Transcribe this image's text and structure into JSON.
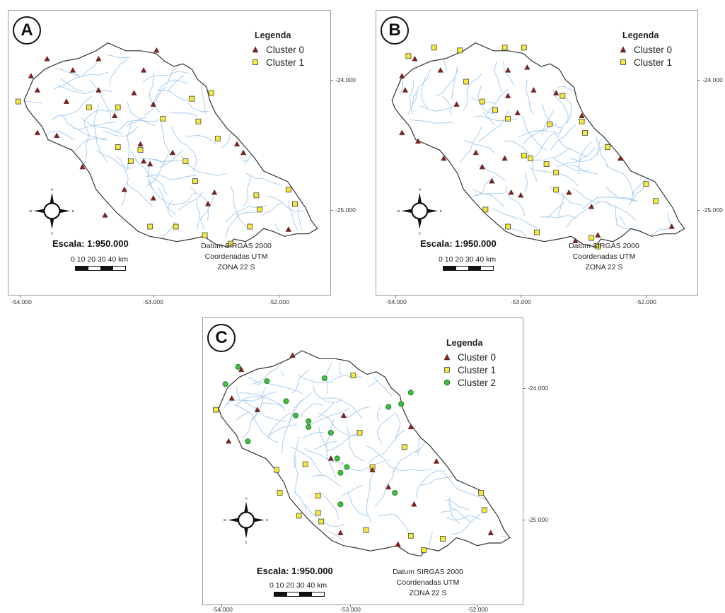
{
  "panels": [
    {
      "label": "A",
      "legend": {
        "title": "Legenda",
        "items": [
          {
            "name": "Cluster 0",
            "symbol": "triangle",
            "color": "#8b1c1c"
          },
          {
            "name": "Cluster 1",
            "symbol": "square",
            "color": "#f5e93c"
          }
        ]
      },
      "scale": {
        "title": "Escala: 1:950.000",
        "ticks": "0  10 20 30 40 km"
      },
      "datum": [
        "Datum SIRGAS 2000",
        "Coordenadas UTM",
        "ZONA 22 S"
      ],
      "lat_labels": [
        "-24.000",
        "-25.000"
      ],
      "lon_labels": [
        "-54.000",
        "-53.000",
        "-52.000"
      ],
      "points": {
        "cluster0": [
          [
            0.2,
            0.21
          ],
          [
            0.28,
            0.17
          ],
          [
            0.42,
            0.21
          ],
          [
            0.46,
            0.14
          ],
          [
            0.12,
            0.17
          ],
          [
            0.07,
            0.23
          ],
          [
            0.09,
            0.28
          ],
          [
            0.18,
            0.32
          ],
          [
            0.28,
            0.28
          ],
          [
            0.39,
            0.29
          ],
          [
            0.33,
            0.37
          ],
          [
            0.45,
            0.33
          ],
          [
            0.41,
            0.47
          ],
          [
            0.09,
            0.43
          ],
          [
            0.15,
            0.44
          ],
          [
            0.23,
            0.55
          ],
          [
            0.42,
            0.53
          ],
          [
            0.44,
            0.54
          ],
          [
            0.51,
            0.5
          ],
          [
            0.36,
            0.63
          ],
          [
            0.45,
            0.66
          ],
          [
            0.62,
            0.68
          ],
          [
            0.3,
            0.72
          ],
          [
            0.64,
            0.64
          ],
          [
            0.71,
            0.47
          ],
          [
            0.73,
            0.5
          ],
          [
            0.87,
            0.77
          ]
        ],
        "cluster1": [
          [
            0.03,
            0.32
          ],
          [
            0.25,
            0.34
          ],
          [
            0.34,
            0.34
          ],
          [
            0.48,
            0.38
          ],
          [
            0.57,
            0.31
          ],
          [
            0.63,
            0.29
          ],
          [
            0.59,
            0.39
          ],
          [
            0.65,
            0.45
          ],
          [
            0.34,
            0.48
          ],
          [
            0.41,
            0.49
          ],
          [
            0.38,
            0.53
          ],
          [
            0.55,
            0.53
          ],
          [
            0.58,
            0.6
          ],
          [
            0.77,
            0.65
          ],
          [
            0.78,
            0.7
          ],
          [
            0.87,
            0.63
          ],
          [
            0.89,
            0.68
          ],
          [
            0.44,
            0.76
          ],
          [
            0.52,
            0.76
          ],
          [
            0.61,
            0.79
          ],
          [
            0.69,
            0.82
          ],
          [
            0.75,
            0.76
          ]
        ]
      }
    },
    {
      "label": "B",
      "legend": {
        "title": "Legenda",
        "items": [
          {
            "name": "Cluster 0",
            "symbol": "triangle",
            "color": "#8b1c1c"
          },
          {
            "name": "Cluster 1",
            "symbol": "square",
            "color": "#f5e93c"
          }
        ]
      },
      "scale": {
        "title": "Escala: 1:950.000",
        "ticks": "0  10 20 30 40 km"
      },
      "datum": [
        "Datum SIRGAS 2000",
        "Coordenadas UTM",
        "ZONA 22 S"
      ],
      "lat_labels": [
        "-24.000",
        "-25.000"
      ],
      "lon_labels": [
        "-54.000",
        "-53.000",
        "-52.000"
      ],
      "points": {
        "cluster0": [
          [
            0.12,
            0.17
          ],
          [
            0.08,
            0.23
          ],
          [
            0.09,
            0.28
          ],
          [
            0.2,
            0.21
          ],
          [
            0.25,
            0.33
          ],
          [
            0.41,
            0.21
          ],
          [
            0.47,
            0.2
          ],
          [
            0.49,
            0.28
          ],
          [
            0.41,
            0.3
          ],
          [
            0.44,
            0.36
          ],
          [
            0.64,
            0.37
          ],
          [
            0.56,
            0.29
          ],
          [
            0.08,
            0.43
          ],
          [
            0.13,
            0.46
          ],
          [
            0.21,
            0.52
          ],
          [
            0.31,
            0.5
          ],
          [
            0.33,
            0.55
          ],
          [
            0.4,
            0.52
          ],
          [
            0.36,
            0.6
          ],
          [
            0.42,
            0.64
          ],
          [
            0.45,
            0.65
          ],
          [
            0.6,
            0.64
          ],
          [
            0.67,
            0.69
          ],
          [
            0.76,
            0.52
          ],
          [
            0.92,
            0.76
          ],
          [
            0.69,
            0.79
          ],
          [
            0.62,
            0.81
          ]
        ],
        "cluster1": [
          [
            0.1,
            0.16
          ],
          [
            0.18,
            0.13
          ],
          [
            0.26,
            0.14
          ],
          [
            0.4,
            0.13
          ],
          [
            0.46,
            0.13
          ],
          [
            0.28,
            0.25
          ],
          [
            0.33,
            0.32
          ],
          [
            0.37,
            0.35
          ],
          [
            0.41,
            0.38
          ],
          [
            0.58,
            0.3
          ],
          [
            0.64,
            0.39
          ],
          [
            0.54,
            0.4
          ],
          [
            0.65,
            0.43
          ],
          [
            0.72,
            0.48
          ],
          [
            0.46,
            0.51
          ],
          [
            0.48,
            0.52
          ],
          [
            0.53,
            0.54
          ],
          [
            0.56,
            0.57
          ],
          [
            0.56,
            0.63
          ],
          [
            0.84,
            0.61
          ],
          [
            0.87,
            0.67
          ],
          [
            0.34,
            0.7
          ],
          [
            0.41,
            0.76
          ],
          [
            0.5,
            0.78
          ],
          [
            0.67,
            0.8
          ],
          [
            0.69,
            0.83
          ]
        ]
      }
    },
    {
      "label": "C",
      "legend": {
        "title": "Legenda",
        "items": [
          {
            "name": "Cluster 0",
            "symbol": "triangle",
            "color": "#8b1c1c"
          },
          {
            "name": "Cluster 1",
            "symbol": "square",
            "color": "#f5e93c"
          },
          {
            "name": "Cluster 2",
            "symbol": "circle",
            "color": "#3fbf3f"
          }
        ]
      },
      "scale": {
        "title": "Escala: 1:950.000",
        "ticks": "0  10 20 30 40 km"
      },
      "datum": [
        "Datum SIRGAS 2000",
        "Coordenadas UTM",
        "ZONA 22 S"
      ],
      "lat_labels": [
        "-24.000",
        "-25.000"
      ],
      "lon_labels": [
        "-54.000",
        "-53.000",
        "-52.000"
      ],
      "points": {
        "cluster0": [
          [
            0.12,
            0.18
          ],
          [
            0.09,
            0.28
          ],
          [
            0.17,
            0.32
          ],
          [
            0.28,
            0.13
          ],
          [
            0.44,
            0.34
          ],
          [
            0.65,
            0.38
          ],
          [
            0.08,
            0.43
          ],
          [
            0.4,
            0.49
          ],
          [
            0.53,
            0.53
          ],
          [
            0.73,
            0.5
          ],
          [
            0.58,
            0.59
          ],
          [
            0.66,
            0.65
          ],
          [
            0.43,
            0.75
          ],
          [
            0.9,
            0.75
          ],
          [
            0.61,
            0.79
          ]
        ],
        "cluster1": [
          [
            0.04,
            0.32
          ],
          [
            0.47,
            0.2
          ],
          [
            0.49,
            0.4
          ],
          [
            0.63,
            0.45
          ],
          [
            0.23,
            0.53
          ],
          [
            0.32,
            0.51
          ],
          [
            0.53,
            0.52
          ],
          [
            0.24,
            0.61
          ],
          [
            0.36,
            0.62
          ],
          [
            0.36,
            0.68
          ],
          [
            0.51,
            0.74
          ],
          [
            0.65,
            0.76
          ],
          [
            0.69,
            0.81
          ],
          [
            0.75,
            0.77
          ],
          [
            0.87,
            0.61
          ],
          [
            0.88,
            0.67
          ],
          [
            0.3,
            0.69
          ],
          [
            0.37,
            0.71
          ]
        ],
        "cluster2": [
          [
            0.2,
            0.22
          ],
          [
            0.26,
            0.29
          ],
          [
            0.29,
            0.34
          ],
          [
            0.33,
            0.36
          ],
          [
            0.33,
            0.38
          ],
          [
            0.38,
            0.21
          ],
          [
            0.11,
            0.17
          ],
          [
            0.07,
            0.23
          ],
          [
            0.14,
            0.43
          ],
          [
            0.4,
            0.4
          ],
          [
            0.42,
            0.49
          ],
          [
            0.43,
            0.54
          ],
          [
            0.45,
            0.52
          ],
          [
            0.58,
            0.31
          ],
          [
            0.62,
            0.3
          ],
          [
            0.65,
            0.26
          ],
          [
            0.6,
            0.61
          ],
          [
            0.43,
            0.65
          ]
        ]
      }
    }
  ],
  "colors": {
    "river": "#a8cdf0",
    "outline": "#333333",
    "triangle_fill": "#8b1c1c",
    "square_fill": "#f5e93c",
    "circle_fill": "#3fbf3f"
  }
}
